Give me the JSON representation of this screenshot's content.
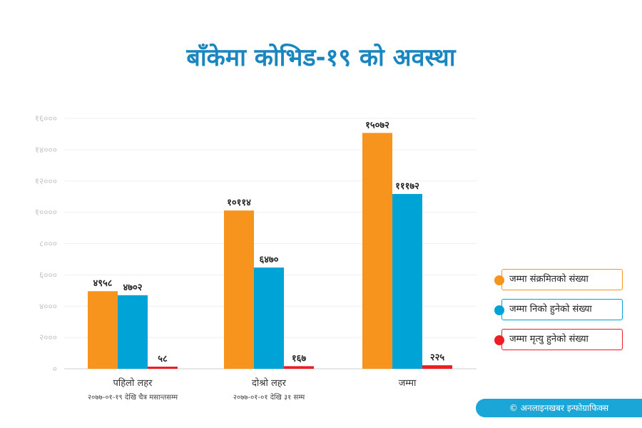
{
  "title": "बाँकेमा कोभिड-१९ को अवस्था",
  "credit": "© अनलाइनखबर इन्फोग्राफिक्स",
  "chart_data": {
    "type": "bar",
    "ylim": [
      0,
      16000
    ],
    "yticks": [
      0,
      2000,
      4000,
      6000,
      8000,
      10000,
      12000,
      14000,
      16000
    ],
    "ytick_labels": [
      "०",
      "२०००",
      "४०००",
      "६०००",
      "८०००",
      "१००००",
      "१२०००",
      "१४०००",
      "१६०००"
    ],
    "grid": true,
    "legend_position": "right",
    "categories": [
      "पहिलो लहर",
      "दोश्रो लहर",
      "जम्मा"
    ],
    "category_sublabels": [
      "२०७७-०१-१९ देखि चैत्र मसान्तसम्म",
      "२०७७-०१-०१ देखि ३१ सम्म",
      ""
    ],
    "series": [
      {
        "name": "जम्मा संक्रमितको संख्या",
        "color": "#f7941d",
        "values": [
          4958,
          10114,
          15072
        ],
        "labels": [
          "४९५८",
          "१०११४",
          "१५०७२"
        ]
      },
      {
        "name": "जम्मा निको हुनेको संख्या",
        "color": "#00a3d6",
        "values": [
          4702,
          6470,
          11172
        ],
        "labels": [
          "४७०२",
          "६४७०",
          "१११७२"
        ]
      },
      {
        "name": "जम्मा मृत्यु हुनेको संख्या",
        "color": "#ee1c25",
        "values": [
          58,
          167,
          225
        ],
        "labels": [
          "५८",
          "१६७",
          "२२५"
        ]
      }
    ]
  }
}
